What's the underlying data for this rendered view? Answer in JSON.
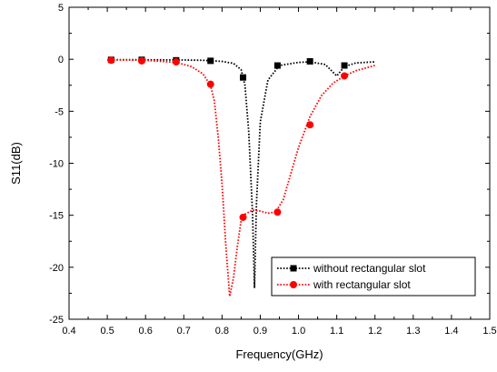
{
  "chart_data": {
    "type": "line",
    "xlabel": "Frequency(GHz)",
    "ylabel": "S11(dB)",
    "xlim": [
      0.4,
      1.5
    ],
    "ylim": [
      -25,
      5
    ],
    "xticks": [
      "0.4",
      "0.5",
      "0.6",
      "0.7",
      "0.8",
      "0.9",
      "1.0",
      "1.1",
      "1.2",
      "1.3",
      "1.4",
      "1.5"
    ],
    "yticks": [
      "5",
      "0",
      "-5",
      "-10",
      "-15",
      "-20",
      "-25"
    ],
    "grid": false,
    "legend_position": "bottom-right",
    "series": [
      {
        "name": "without rectangular slot",
        "color": "#000000",
        "marker": "square",
        "x": [
          0.5,
          0.6,
          0.7,
          0.75,
          0.8,
          0.83,
          0.85,
          0.86,
          0.87,
          0.88,
          0.885,
          0.89,
          0.9,
          0.92,
          0.95,
          1.0,
          1.03,
          1.07,
          1.1,
          1.12,
          1.15,
          1.2
        ],
        "y": [
          -0.05,
          -0.05,
          -0.07,
          -0.1,
          -0.2,
          -0.4,
          -1.0,
          -2.5,
          -7.0,
          -15.0,
          -22.0,
          -14.0,
          -6.0,
          -2.0,
          -0.6,
          -0.3,
          -0.25,
          -0.5,
          -1.6,
          -0.7,
          -0.35,
          -0.25
        ],
        "markers_x": [
          0.51,
          0.59,
          0.68,
          0.77,
          0.855,
          0.945,
          1.03,
          1.12
        ],
        "markers_y": [
          -0.05,
          -0.05,
          -0.1,
          -0.15,
          -1.75,
          -0.6,
          -0.2,
          -0.6
        ]
      },
      {
        "name": "with rectangular slot",
        "color": "#ff0000",
        "marker": "circle",
        "x": [
          0.5,
          0.6,
          0.68,
          0.72,
          0.75,
          0.77,
          0.78,
          0.79,
          0.8,
          0.81,
          0.82,
          0.83,
          0.84,
          0.85,
          0.86,
          0.88,
          0.9,
          0.92,
          0.94,
          0.96,
          0.98,
          1.0,
          1.03,
          1.06,
          1.09,
          1.12,
          1.15,
          1.2
        ],
        "y": [
          -0.05,
          -0.1,
          -0.3,
          -0.7,
          -1.4,
          -2.5,
          -4.0,
          -7.5,
          -12.0,
          -18.0,
          -22.8,
          -21.0,
          -18.0,
          -15.5,
          -14.9,
          -14.5,
          -14.6,
          -14.8,
          -14.7,
          -13.5,
          -11.0,
          -8.5,
          -5.5,
          -3.5,
          -2.3,
          -1.6,
          -1.1,
          -0.6
        ],
        "markers_x": [
          0.51,
          0.59,
          0.68,
          0.77,
          0.855,
          0.945,
          1.03,
          1.12
        ],
        "markers_y": [
          -0.1,
          -0.15,
          -0.25,
          -2.4,
          -15.2,
          -14.7,
          -6.3,
          -1.6
        ]
      }
    ]
  }
}
